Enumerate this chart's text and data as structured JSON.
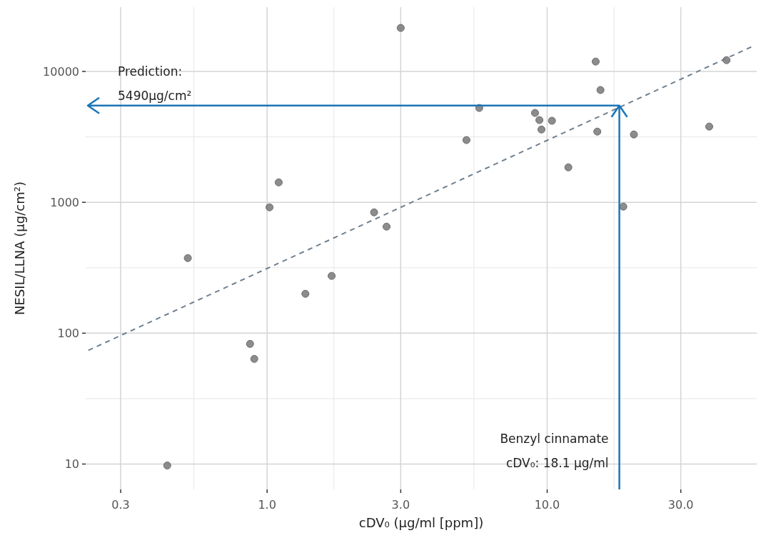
{
  "chart_data": {
    "type": "scatter",
    "xlabel": "cDV₀ (µg/ml [ppm])",
    "ylabel": "NESIL/LLNA (µg/cm²)",
    "log": "xy",
    "grid": true,
    "xlim": [
      0.225,
      56
    ],
    "ylim": [
      6.4,
      31000
    ],
    "xticks": [
      0.3,
      {
        "value": 1,
        "label": "1.0"
      },
      {
        "value": 3,
        "label": "3.0"
      },
      {
        "value": 10,
        "label": "10.0"
      },
      {
        "value": 30,
        "label": "30.0"
      }
    ],
    "yticks": [
      10,
      100,
      1000,
      10000
    ],
    "series": [
      {
        "color": "#808080",
        "marker": "circle",
        "x": [
          3.0,
          14.9,
          43.7,
          15.5,
          5.72,
          9.05,
          9.38,
          10.4,
          9.54,
          15.1,
          20.4,
          37.9,
          5.15,
          11.9,
          18.7,
          1.1,
          1.02,
          2.41,
          2.67,
          0.521,
          1.7,
          1.37,
          0.869,
          0.9,
          0.44
        ],
        "values": [
          21500,
          11900,
          12200,
          7210,
          5260,
          4820,
          4250,
          4200,
          3600,
          3470,
          3300,
          3790,
          2990,
          1850,
          927,
          1420,
          916,
          838,
          652,
          375,
          274,
          200,
          82.8,
          63.6,
          9.75
        ]
      },
      {
        "type": "line",
        "color": "#708090",
        "line_style": "dashed",
        "marker": "none",
        "x": [
          0.23,
          55
        ],
        "values": [
          74,
          15800
        ]
      }
    ],
    "ref_lines": [
      {
        "axis": "x",
        "value": 18.1,
        "label": "Benzyl cinnamate\ncDV₀: 18.1 µg/ml",
        "color": "#1a75b8"
      },
      {
        "axis": "y",
        "value": 5490,
        "label": "Prediction:\n5490µg/cm²",
        "color": "#1a75b8"
      }
    ]
  }
}
